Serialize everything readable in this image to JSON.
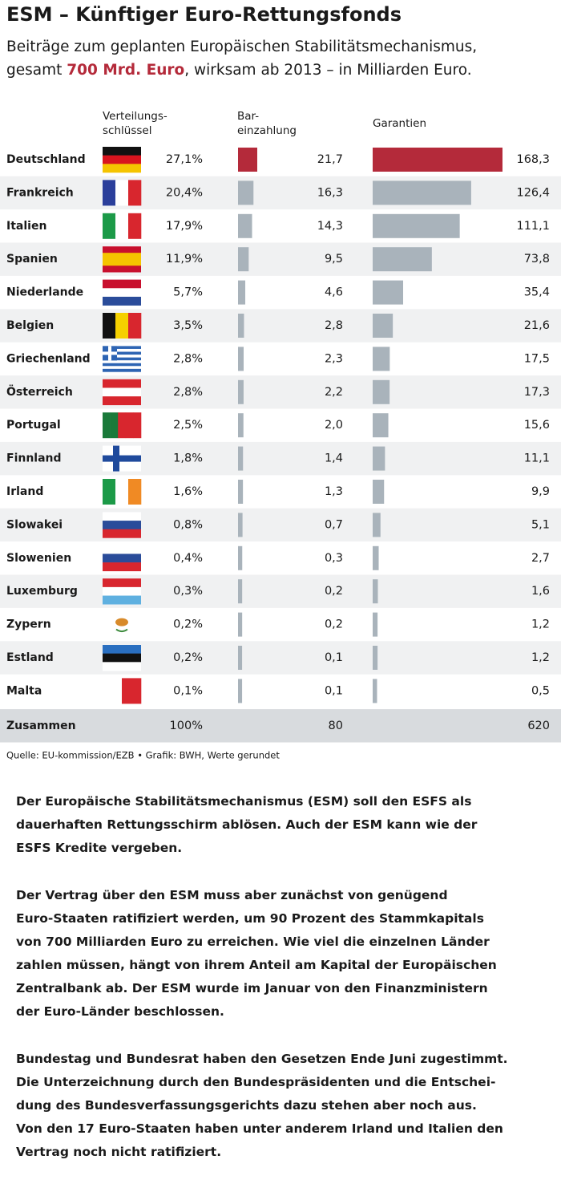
{
  "title": "ESM – Künftiger Euro-Rettungsfonds",
  "subtitle": [
    "Beiträge zum geplanten Europäischen Stabilitätsmechanismus,",
    "gesamt ",
    "700 Mrd. Euro",
    ", wirksam ab 2013 – in Milliarden Euro."
  ],
  "chart_data": {
    "type": "bar",
    "categories": [
      "Deutschland",
      "Frankreich",
      "Italien",
      "Spanien",
      "Niederlande",
      "Belgien",
      "Griechenland",
      "Österreich",
      "Portugal",
      "Finnland",
      "Irland",
      "Slowakei",
      "Slowenien",
      "Luxemburg",
      "Zypern",
      "Estland",
      "Malta"
    ],
    "total_label": "Zusammen",
    "series": [
      {
        "header": [
          "Verteilungs-",
          "schlüssel"
        ],
        "values": [
          27.1,
          20.4,
          17.9,
          11.9,
          5.7,
          3.5,
          2.8,
          2.8,
          2.5,
          1.8,
          1.6,
          0.8,
          0.4,
          0.3,
          0.2,
          0.2,
          0.1
        ],
        "value_labels": [
          "27,1%",
          "20,4%",
          "17,9%",
          "11,9%",
          "5,7%",
          "3,5%",
          "2,8%",
          "2,8%",
          "2,5%",
          "1,8%",
          "1,6%",
          "0,8%",
          "0,4%",
          "0,3%",
          "0,2%",
          "0,2%",
          "0,1%"
        ],
        "total": 100,
        "total_label": "100%"
      },
      {
        "header": [
          "Bar-",
          "einzahlung"
        ],
        "values": [
          21.7,
          16.3,
          14.3,
          9.5,
          4.6,
          2.8,
          2.3,
          2.2,
          2.0,
          1.4,
          1.3,
          0.7,
          0.3,
          0.2,
          0.2,
          0.1,
          0.1
        ],
        "value_labels": [
          "21,7",
          "16,3",
          "14,3",
          "9,5",
          "4,6",
          "2,8",
          "2,3",
          "2,2",
          "2,0",
          "1,4",
          "1,3",
          "0,7",
          "0,3",
          "0,2",
          "0,2",
          "0,1",
          "0,1"
        ],
        "colors": [
          "#b42a3a",
          "#a9b3bb",
          "#a9b3bb",
          "#a9b3bb",
          "#a9b3bb",
          "#a9b3bb",
          "#a9b3bb",
          "#a9b3bb",
          "#a9b3bb",
          "#a9b3bb",
          "#a9b3bb",
          "#a9b3bb",
          "#a9b3bb",
          "#a9b3bb",
          "#a9b3bb",
          "#a9b3bb",
          "#a9b3bb"
        ],
        "total": 80
      },
      {
        "header": [
          "Garantien"
        ],
        "values": [
          168.3,
          126.4,
          111.1,
          73.8,
          35.4,
          21.6,
          17.5,
          17.3,
          15.6,
          11.1,
          9.9,
          5.1,
          2.7,
          1.6,
          1.2,
          1.2,
          0.5
        ],
        "value_labels": [
          "168,3",
          "126,4",
          "111,1",
          "73,8",
          "35,4",
          "21,6",
          "17,5",
          "17,3",
          "15,6",
          "11,1",
          "9,9",
          "5,1",
          "2,7",
          "1,6",
          "1,2",
          "1,2",
          "0,5"
        ],
        "colors": [
          "#b42a3a",
          "#a9b3bb",
          "#a9b3bb",
          "#a9b3bb",
          "#a9b3bb",
          "#a9b3bb",
          "#a9b3bb",
          "#a9b3bb",
          "#a9b3bb",
          "#a9b3bb",
          "#a9b3bb",
          "#a9b3bb",
          "#a9b3bb",
          "#a9b3bb",
          "#a9b3bb",
          "#a9b3bb",
          "#a9b3bb"
        ],
        "total": 620
      }
    ]
  },
  "source": "Quelle: EU-kommission/EZB • Grafik: BWH, Werte gerundet",
  "paragraphs": [
    [
      "Der Europäische Stabilitätsmechanismus (ESM) soll den ESFS als",
      "dauerhaften Rettungsschirm ablösen. Auch der ESM kann wie der",
      "ESFS Kredite vergeben."
    ],
    [
      "Der Vertrag über den ESM muss aber zunächst von genügend",
      "Euro-Staaten ratifiziert werden, um 90 Prozent des Stammkapitals",
      "von 700 Milliarden Euro zu erreichen. Wie viel die einzelnen Länder",
      "zahlen müssen, hängt von ihrem Anteil am Kapital der Europäischen",
      "Zentralbank ab. Der ESM wurde im Januar von den Finanzministern",
      "der Euro-Länder beschlossen."
    ],
    [
      "Bundestag und Bundesrat haben den Gesetzen Ende Juni zugestimmt.",
      "Die Unterzeichnung durch den Bundespräsidenten und die Entschei-",
      "dung des Bundesverfassungsgerichts dazu stehen aber noch aus.",
      "Von den 17 Euro-Staaten haben unter anderem Irland und Italien den",
      "Vertrag noch nicht ratifiziert."
    ]
  ]
}
